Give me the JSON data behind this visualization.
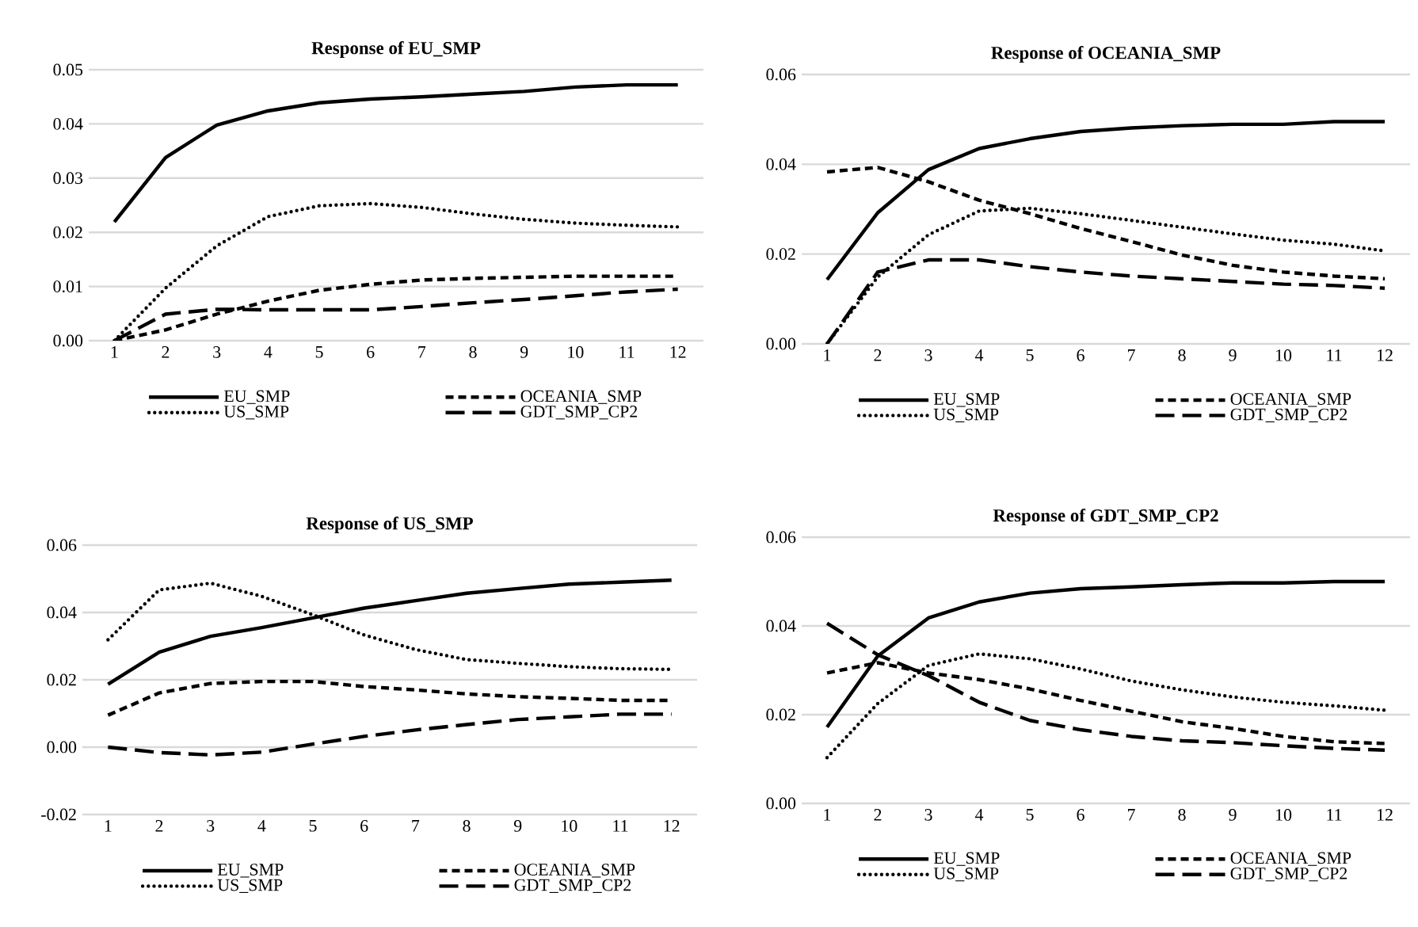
{
  "chart_data": [
    {
      "type": "line",
      "title": "Response of EU_SMP",
      "categories": [
        "1",
        "2",
        "3",
        "4",
        "5",
        "6",
        "7",
        "8",
        "9",
        "10",
        "11",
        "12"
      ],
      "ylim": [
        0,
        0.05
      ],
      "yticks": [
        {
          "value": 0,
          "label": "0.00"
        },
        {
          "value": 0.01,
          "label": "0.01"
        },
        {
          "value": 0.02,
          "label": "0.02"
        },
        {
          "value": 0.03,
          "label": "0.03"
        },
        {
          "value": 0.04,
          "label": "0.04"
        },
        {
          "value": 0.05,
          "label": "0.05"
        }
      ],
      "grid": "y",
      "legend": "bottom",
      "series": [
        {
          "name": "EU_SMP",
          "color": "#000000",
          "line_style": "solid",
          "values": [
            0.0219,
            0.0338,
            0.0398,
            0.0424,
            0.0439,
            0.0446,
            0.045,
            0.0455,
            0.046,
            0.0468,
            0.0472,
            0.0472
          ]
        },
        {
          "name": "OCEANIA_SMP",
          "color": "#000000",
          "line_style": "dashed",
          "values": [
            0.0,
            0.002,
            0.0049,
            0.0073,
            0.0093,
            0.0104,
            0.0112,
            0.0115,
            0.0117,
            0.0119,
            0.0119,
            0.0119
          ]
        },
        {
          "name": "US_SMP",
          "color": "#000000",
          "line_style": "dotted",
          "values": [
            0.0,
            0.0097,
            0.0175,
            0.0229,
            0.0249,
            0.0253,
            0.0246,
            0.0234,
            0.0224,
            0.0217,
            0.0213,
            0.021
          ]
        },
        {
          "name": "GDT_SMP_CP2",
          "color": "#000000",
          "line_style": "dashed",
          "values": [
            0.0,
            0.0049,
            0.0058,
            0.0057,
            0.0057,
            0.0057,
            0.0063,
            0.007,
            0.0076,
            0.0083,
            0.009,
            0.0095
          ]
        }
      ]
    },
    {
      "type": "line",
      "title": "Response of OCEANIA_SMP",
      "categories": [
        "1",
        "2",
        "3",
        "4",
        "5",
        "6",
        "7",
        "8",
        "9",
        "10",
        "11",
        "12"
      ],
      "ylim": [
        0,
        0.06
      ],
      "yticks": [
        {
          "value": 0,
          "label": "0.00"
        },
        {
          "value": 0.02,
          "label": "0.02"
        },
        {
          "value": 0.04,
          "label": "0.04"
        },
        {
          "value": 0.06,
          "label": "0.06"
        }
      ],
      "grid": "y",
      "legend": "bottom",
      "series": [
        {
          "name": "EU_SMP",
          "color": "#000000",
          "line_style": "solid",
          "values": [
            0.0143,
            0.0292,
            0.0388,
            0.0435,
            0.0457,
            0.0473,
            0.0481,
            0.0486,
            0.0489,
            0.0489,
            0.0495,
            0.0495
          ]
        },
        {
          "name": "OCEANIA_SMP",
          "color": "#000000",
          "line_style": "dashed",
          "values": [
            0.0383,
            0.0393,
            0.0361,
            0.032,
            0.029,
            0.0257,
            0.0228,
            0.0198,
            0.0175,
            0.016,
            0.0151,
            0.0145
          ]
        },
        {
          "name": "US_SMP",
          "color": "#000000",
          "line_style": "dotted",
          "values": [
            0.0,
            0.0149,
            0.0243,
            0.0296,
            0.0302,
            0.029,
            0.0275,
            0.026,
            0.0245,
            0.0231,
            0.0222,
            0.0207
          ]
        },
        {
          "name": "GDT_SMP_CP2",
          "color": "#000000",
          "line_style": "dashed",
          "values": [
            0.0,
            0.016,
            0.0187,
            0.0187,
            0.0172,
            0.016,
            0.0151,
            0.0145,
            0.0139,
            0.0133,
            0.013,
            0.0124
          ]
        }
      ]
    },
    {
      "type": "line",
      "title": "Response of US_SMP",
      "categories": [
        "1",
        "2",
        "3",
        "4",
        "5",
        "6",
        "7",
        "8",
        "9",
        "10",
        "11",
        "12"
      ],
      "ylim": [
        -0.02,
        0.06
      ],
      "yticks": [
        {
          "value": -0.02,
          "label": "-0.02"
        },
        {
          "value": 0,
          "label": "0.00"
        },
        {
          "value": 0.02,
          "label": "0.02"
        },
        {
          "value": 0.04,
          "label": "0.04"
        },
        {
          "value": 0.06,
          "label": "0.06"
        }
      ],
      "grid": "y",
      "legend": "bottom",
      "series": [
        {
          "name": "EU_SMP",
          "color": "#000000",
          "line_style": "solid",
          "values": [
            0.0187,
            0.0282,
            0.0329,
            0.0355,
            0.0384,
            0.0413,
            0.0435,
            0.0457,
            0.0471,
            0.0484,
            0.049,
            0.0496
          ]
        },
        {
          "name": "OCEANIA_SMP",
          "color": "#000000",
          "line_style": "dashed",
          "values": [
            0.0095,
            0.0161,
            0.0189,
            0.0195,
            0.0195,
            0.018,
            0.017,
            0.0158,
            0.015,
            0.0145,
            0.0139,
            0.0139
          ]
        },
        {
          "name": "US_SMP",
          "color": "#000000",
          "line_style": "dotted",
          "values": [
            0.0319,
            0.0467,
            0.0487,
            0.0448,
            0.0393,
            0.0333,
            0.029,
            0.026,
            0.0249,
            0.0239,
            0.0233,
            0.0231
          ]
        },
        {
          "name": "GDT_SMP_CP2",
          "color": "#000000",
          "line_style": "dashed",
          "values": [
            0.0,
            -0.0016,
            -0.0023,
            -0.0015,
            0.0009,
            0.0032,
            0.0051,
            0.0067,
            0.0082,
            0.009,
            0.0098,
            0.0098
          ]
        }
      ]
    },
    {
      "type": "line",
      "title": "Response of GDT_SMP_CP2",
      "categories": [
        "1",
        "2",
        "3",
        "4",
        "5",
        "6",
        "7",
        "8",
        "9",
        "10",
        "11",
        "12"
      ],
      "ylim": [
        0,
        0.06
      ],
      "yticks": [
        {
          "value": 0,
          "label": "0.00"
        },
        {
          "value": 0.02,
          "label": "0.02"
        },
        {
          "value": 0.04,
          "label": "0.04"
        },
        {
          "value": 0.06,
          "label": "0.06"
        }
      ],
      "grid": "y",
      "legend": "bottom",
      "series": [
        {
          "name": "EU_SMP",
          "color": "#000000",
          "line_style": "solid",
          "values": [
            0.0172,
            0.0332,
            0.0418,
            0.0454,
            0.0474,
            0.0484,
            0.0488,
            0.0493,
            0.0497,
            0.0497,
            0.05,
            0.05
          ]
        },
        {
          "name": "OCEANIA_SMP",
          "color": "#000000",
          "line_style": "dashed",
          "values": [
            0.0294,
            0.0317,
            0.0294,
            0.0279,
            0.0258,
            0.0232,
            0.0208,
            0.0184,
            0.0169,
            0.0151,
            0.0139,
            0.0135
          ]
        },
        {
          "name": "US_SMP",
          "color": "#000000",
          "line_style": "dotted",
          "values": [
            0.0103,
            0.0225,
            0.0311,
            0.0337,
            0.0326,
            0.0303,
            0.0276,
            0.0256,
            0.024,
            0.0228,
            0.022,
            0.021
          ]
        },
        {
          "name": "GDT_SMP_CP2",
          "color": "#000000",
          "line_style": "dashed",
          "values": [
            0.0406,
            0.0335,
            0.0288,
            0.0228,
            0.0187,
            0.0166,
            0.0151,
            0.0141,
            0.0137,
            0.013,
            0.0124,
            0.012
          ]
        }
      ]
    }
  ]
}
